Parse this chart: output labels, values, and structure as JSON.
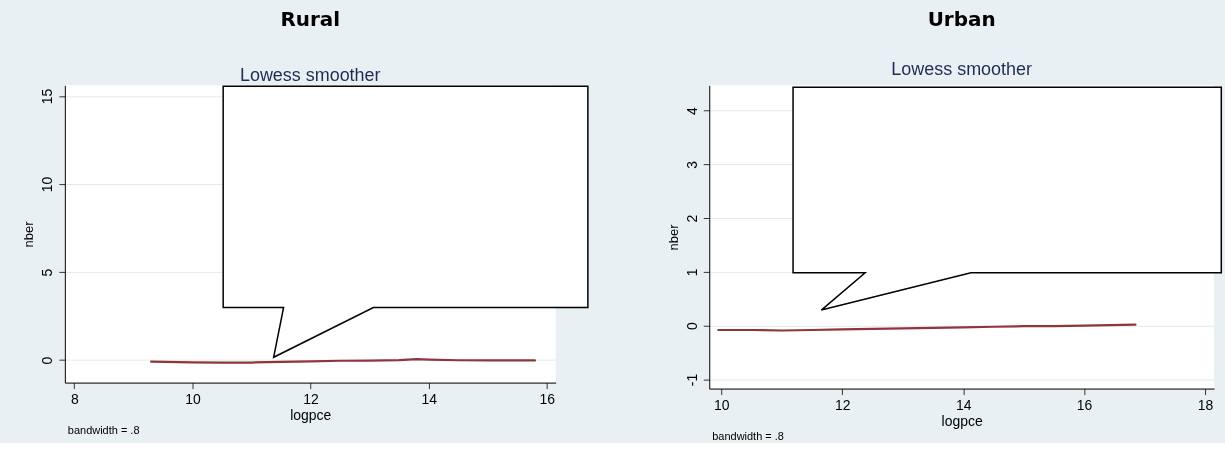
{
  "chart_data": [
    {
      "type": "line",
      "title": "Rural",
      "subtitle": "Lowess smoother",
      "xlabel": "logpce",
      "ylabel": "nber",
      "annotations": [
        "bandwidth = .8"
      ],
      "x": [
        9.3,
        10.0,
        10.5,
        11.0,
        11.5,
        12.0,
        12.5,
        13.0,
        13.5,
        13.8,
        14.0,
        14.5,
        15.0,
        15.8
      ],
      "series": [
        {
          "color": "#90353b",
          "values": [
            -0.09,
            -0.13,
            -0.15,
            -0.14,
            -0.1,
            -0.07,
            -0.04,
            -0.03,
            0.0,
            0.05,
            0.03,
            -0.01,
            -0.02,
            -0.02
          ]
        }
      ],
      "xlim": [
        7.84,
        16.15
      ],
      "ylim": [
        -1.28,
        15.6
      ],
      "xticks": [
        8,
        10,
        12,
        14,
        16
      ],
      "yticks": [
        0,
        5,
        10,
        15
      ],
      "grid": "y",
      "line_style": "solid"
    },
    {
      "type": "line",
      "title": "Urban",
      "subtitle": "Lowess smoother",
      "xlabel": "logpce",
      "ylabel": "nber",
      "annotations": [
        "bandwidth = .8"
      ],
      "x": [
        9.95,
        10.5,
        11.0,
        11.5,
        12.0,
        12.5,
        13.0,
        13.5,
        14.0,
        14.5,
        15.0,
        15.5,
        16.0,
        16.85
      ],
      "series": [
        {
          "color": "#90353b",
          "values": [
            -0.08,
            -0.08,
            -0.09,
            -0.08,
            -0.07,
            -0.06,
            -0.05,
            -0.04,
            -0.03,
            -0.02,
            -0.01,
            -0.01,
            0.0,
            0.02
          ]
        }
      ],
      "xlim": [
        9.8,
        18.15
      ],
      "ylim": [
        -1.17,
        4.47
      ],
      "xticks": [
        10,
        12,
        14,
        16,
        18
      ],
      "yticks": [
        -1,
        0,
        1,
        2,
        3,
        4
      ],
      "grid": "y",
      "line_style": "solid"
    }
  ]
}
